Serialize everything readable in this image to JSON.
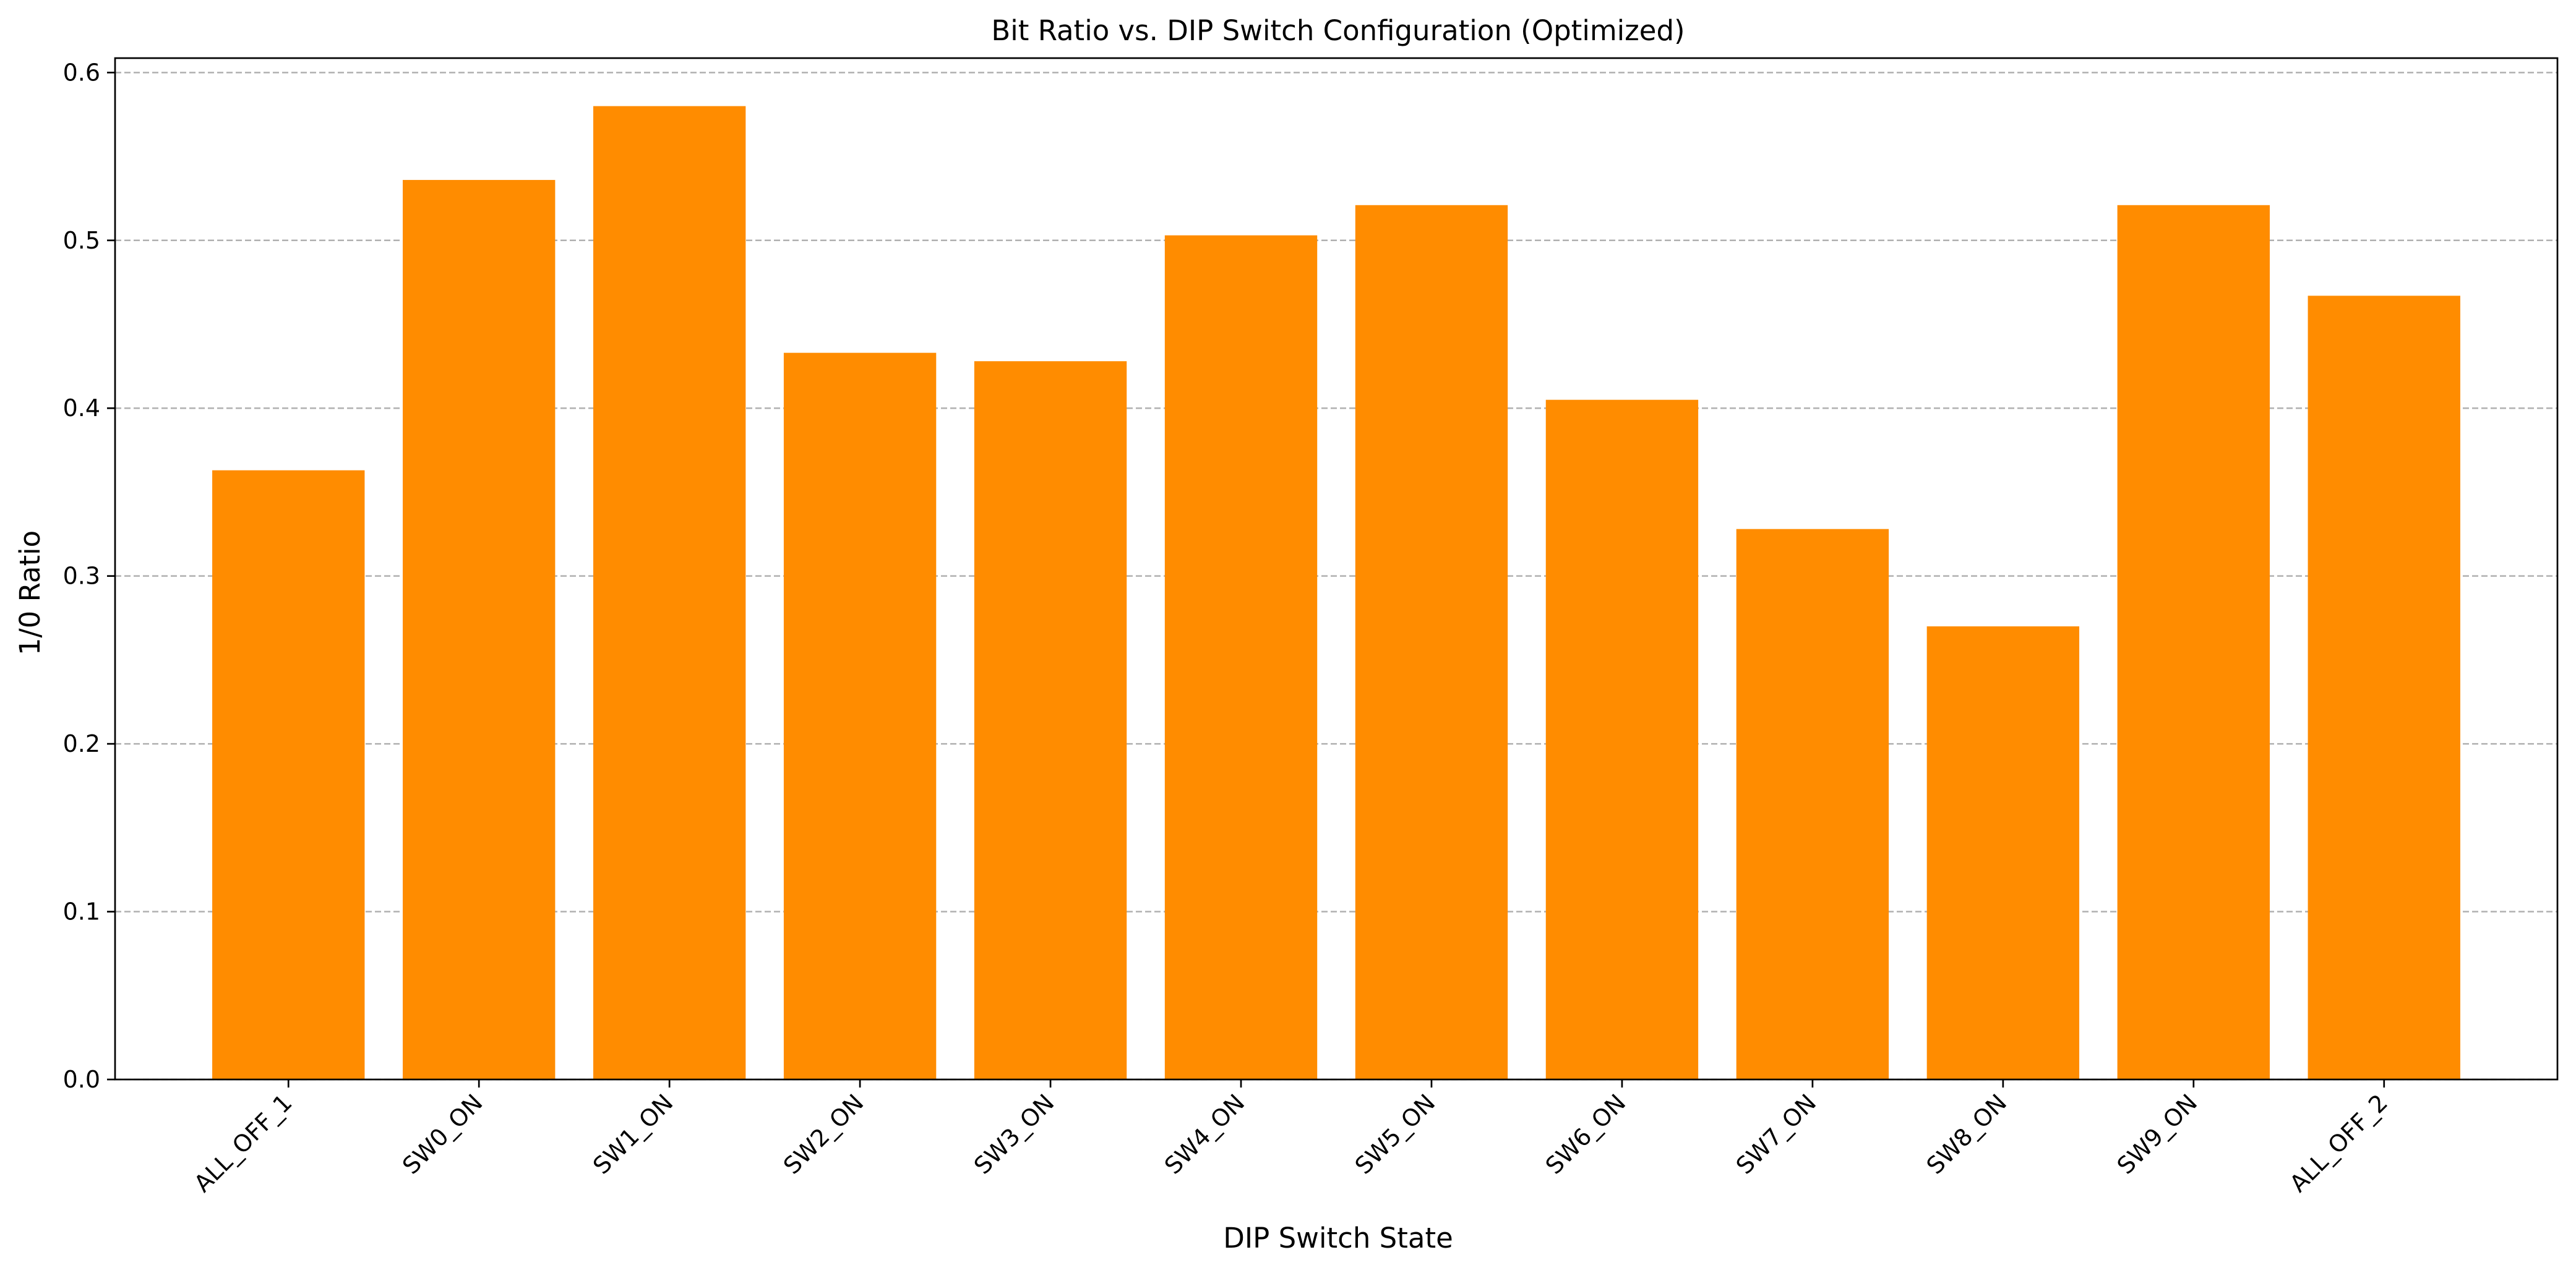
{
  "chart_data": {
    "type": "bar",
    "title": "Bit Ratio vs. DIP Switch Configuration (Optimized)",
    "xlabel": "DIP Switch State",
    "ylabel": "1/0 Ratio",
    "categories": [
      "ALL_OFF_1",
      "SW0_ON",
      "SW1_ON",
      "SW2_ON",
      "SW3_ON",
      "SW4_ON",
      "SW5_ON",
      "SW6_ON",
      "SW7_ON",
      "SW8_ON",
      "SW9_ON",
      "ALL_OFF_2"
    ],
    "values": [
      0.363,
      0.536,
      0.58,
      0.433,
      0.428,
      0.503,
      0.521,
      0.405,
      0.328,
      0.27,
      0.521,
      0.467
    ],
    "ylim": [
      0,
      0.6086
    ],
    "yticks": [
      0.0,
      0.1,
      0.2,
      0.3,
      0.4,
      0.5,
      0.6
    ],
    "ytick_labels": [
      "0.0",
      "0.1",
      "0.2",
      "0.3",
      "0.4",
      "0.5",
      "0.6"
    ],
    "grid": {
      "y": true,
      "x": false,
      "style": "dashed"
    },
    "bar_color": "#ff8c00",
    "x_tick_rotation": 45
  }
}
